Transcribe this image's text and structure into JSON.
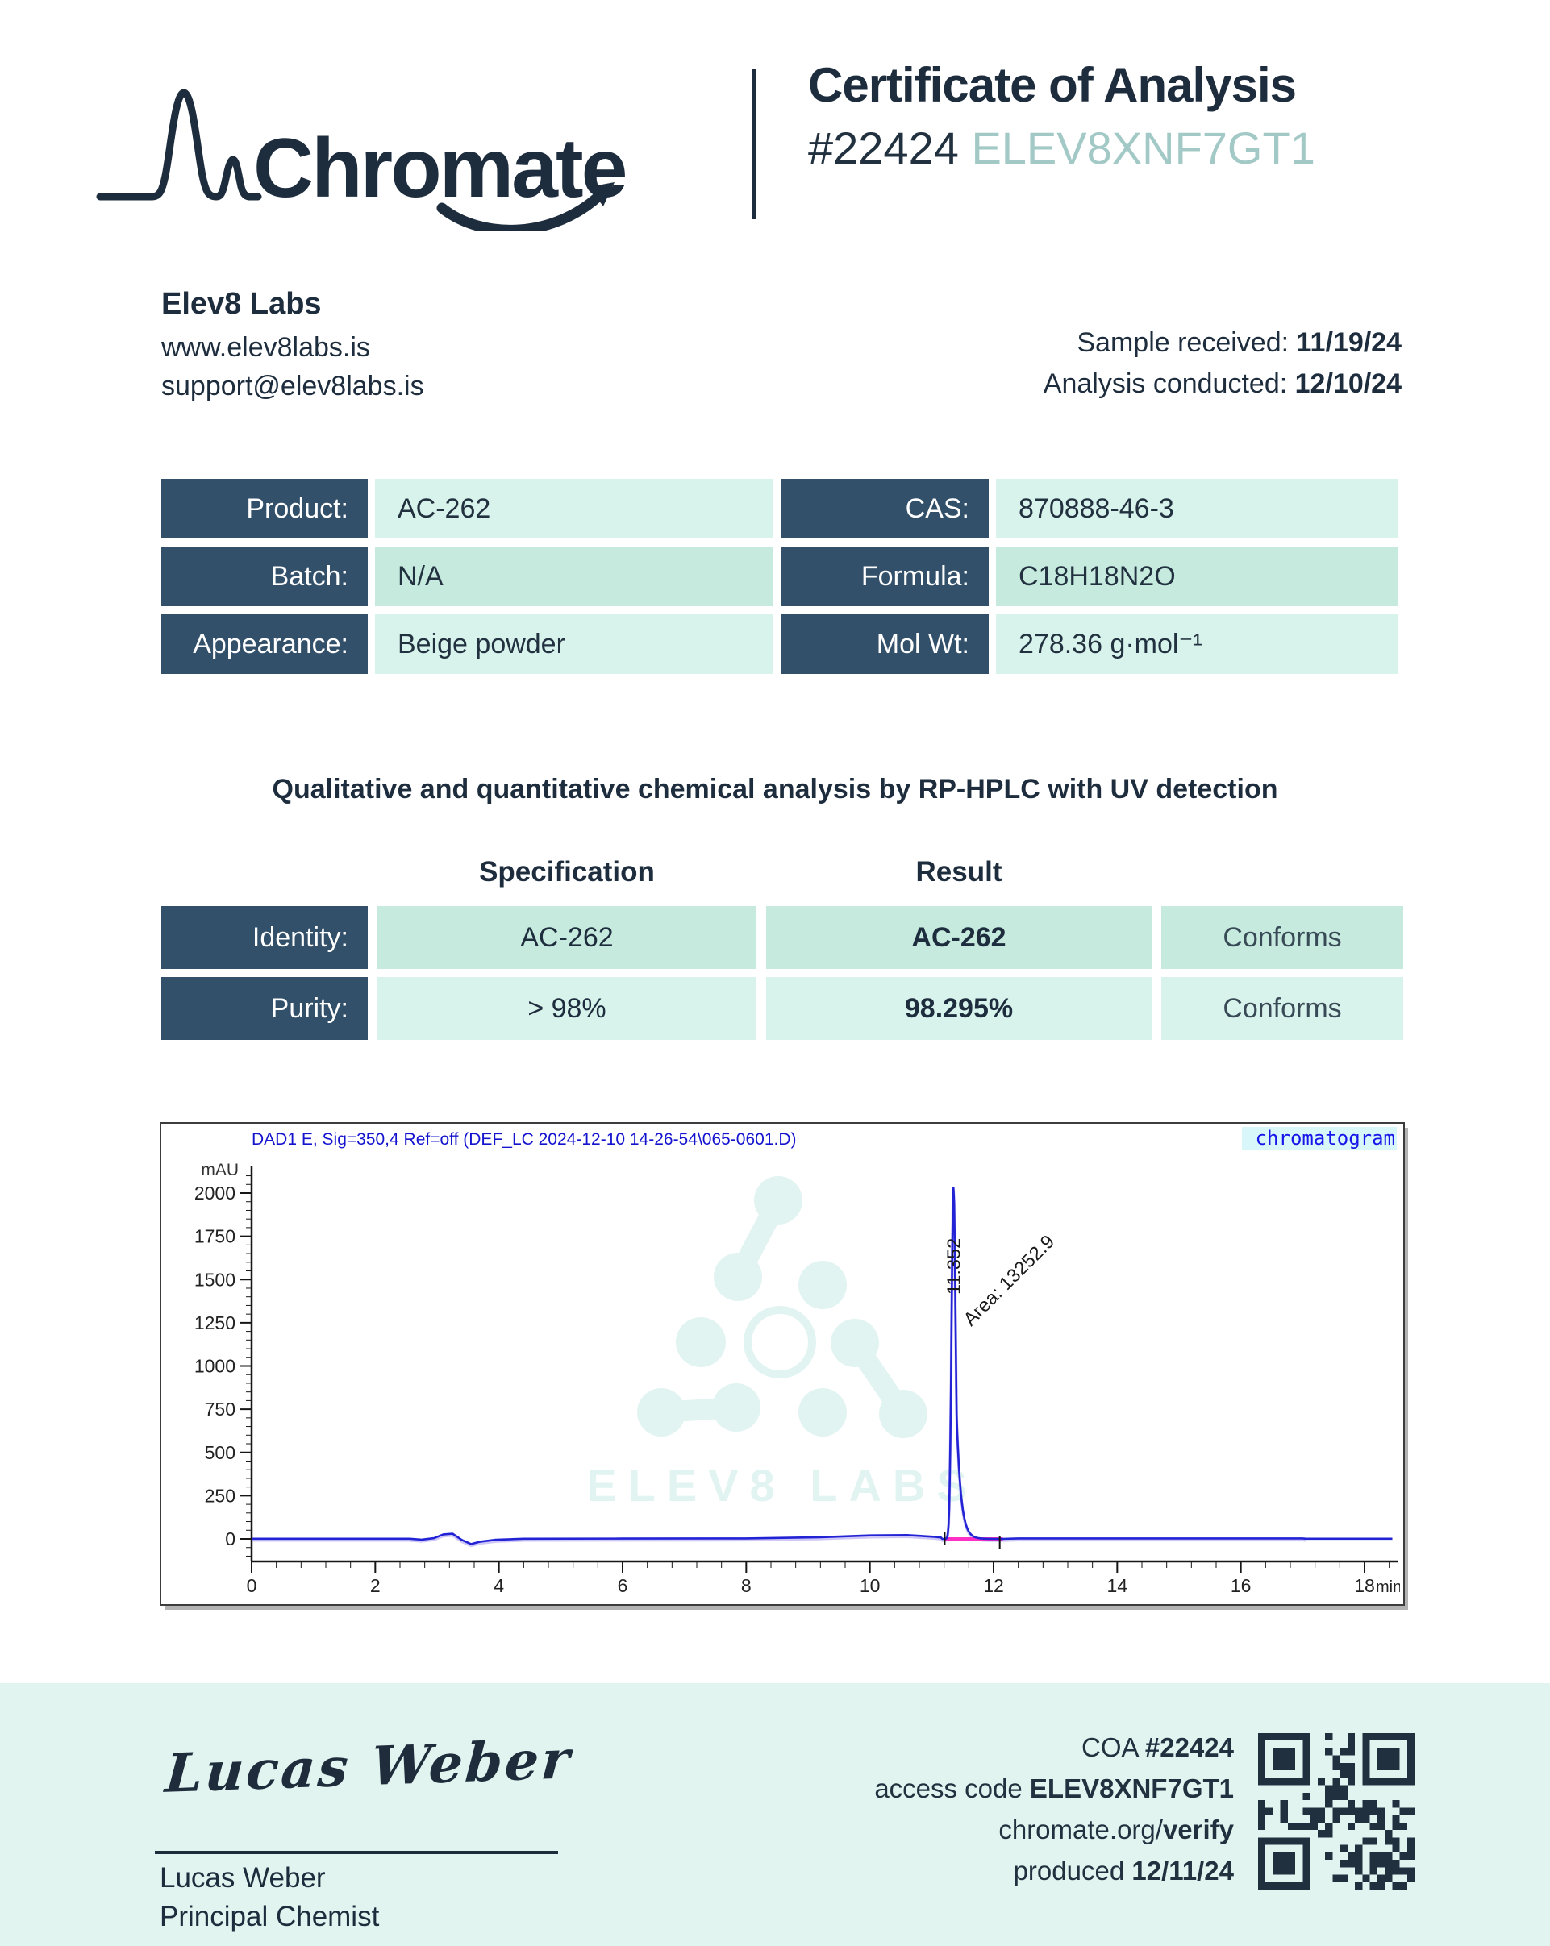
{
  "header": {
    "brand": "Chromate",
    "title": "Certificate of Analysis",
    "coa_number": "#22424",
    "access_code": "ELEV8XNF7GT1"
  },
  "lab": {
    "name": "Elev8 Labs",
    "website": "www.elev8labs.is",
    "email": "support@elev8labs.is",
    "sample_received_label": "Sample received:",
    "sample_received": "11/19/24",
    "analysis_conducted_label": "Analysis conducted:",
    "analysis_conducted": "12/10/24"
  },
  "product_table": {
    "left": [
      {
        "label": "Product:",
        "value": "AC-262"
      },
      {
        "label": "Batch:",
        "value": "N/A"
      },
      {
        "label": "Appearance:",
        "value": "Beige powder"
      }
    ],
    "right": [
      {
        "label": "CAS:",
        "value": "870888-46-3"
      },
      {
        "label": "Formula:",
        "value": "C18H18N2O"
      },
      {
        "label": "Mol Wt:",
        "value": "278.36 g·mol⁻¹"
      }
    ]
  },
  "method_statement": "Qualitative and quantitative chemical analysis by RP-HPLC with UV detection",
  "results_table": {
    "spec_header": "Specification",
    "result_header": "Result",
    "rows": [
      {
        "label": "Identity:",
        "spec": "AC-262",
        "result": "AC-262",
        "status": "Conforms"
      },
      {
        "label": "Purity:",
        "spec": "> 98%",
        "result": "98.295%",
        "status": "Conforms"
      }
    ]
  },
  "chart_data": {
    "type": "line",
    "title": "DAD1 E, Sig=350,4 Ref=off (DEF_LC 2024-12-10 14-26-54\\065-0601.D)",
    "corner_label": "chromatogram",
    "ylabel": "mAU",
    "xlabel": "min",
    "xlim": [
      0,
      18.6
    ],
    "ylim": [
      -140,
      2160
    ],
    "x_major_tick_step": 2,
    "x_minor_tick_step": 0.4,
    "y_major_tick_step": 250,
    "y_minor_tick_step": 50,
    "x_max_label": 18,
    "y_max_label": 2000,
    "x_major_ticks": [
      0,
      2,
      4,
      6,
      8,
      10,
      12,
      14,
      16,
      18
    ],
    "y_major_ticks": [
      0,
      250,
      500,
      750,
      1000,
      1250,
      1500,
      1750,
      2000
    ],
    "line_color": "#2323d6",
    "shadow_color": "#a79af0",
    "integration_color": "#ff2ec4",
    "header_color": "#1414cf",
    "watermark_text": "ELEV8 LABS",
    "peak": {
      "retention_time": 11.352,
      "rt_label": "11.352",
      "area_label": "Area: 13252.9",
      "area_value": 13252.9,
      "height_mau": 2030,
      "integration_start": 11.21,
      "integration_end": 12.15
    },
    "baseline_points": [
      [
        0,
        1
      ],
      [
        2.55,
        1
      ],
      [
        2.75,
        -4
      ],
      [
        2.95,
        4
      ],
      [
        3.1,
        26
      ],
      [
        3.25,
        30
      ],
      [
        3.4,
        -6
      ],
      [
        3.55,
        -30
      ],
      [
        3.7,
        -16
      ],
      [
        3.95,
        -5
      ],
      [
        4.4,
        1
      ],
      [
        6,
        2
      ],
      [
        8,
        3
      ],
      [
        9.2,
        10
      ],
      [
        10.0,
        20
      ],
      [
        10.6,
        22
      ],
      [
        11.05,
        12
      ],
      [
        11.15,
        8
      ]
    ],
    "post_points": [
      [
        12.4,
        3
      ],
      [
        13.5,
        3
      ],
      [
        15,
        3
      ],
      [
        17,
        3
      ],
      [
        17.05,
        1
      ],
      [
        18.45,
        1
      ]
    ]
  },
  "footer": {
    "signature_text": "Lucas Weber",
    "signer_name": "Lucas Weber",
    "signer_title": "Principal Chemist",
    "coa_label": "COA",
    "coa_number": "#22424",
    "access_label": "access code",
    "access_code": "ELEV8XNF7GT1",
    "verify_prefix": "chromate.org/",
    "verify_bold": "verify",
    "produced_label": "produced",
    "produced_date": "12/11/24"
  }
}
